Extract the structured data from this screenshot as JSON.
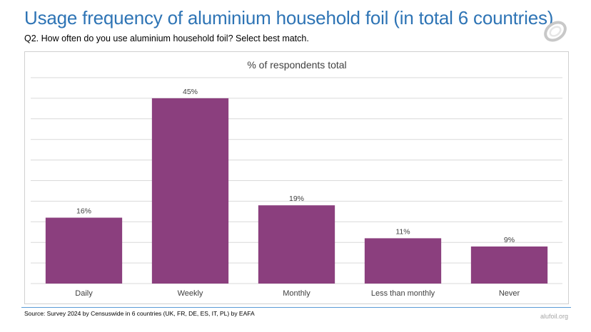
{
  "header": {
    "title": "Usage frequency of aluminium household foil (in total 6 countries)",
    "question": "Q2. How often do you use aluminium household foil? Select best match."
  },
  "footer": {
    "source": "Source: Survey 2024 by Censuswide in 6 countries (UK, FR, DE, ES, IT, PL) by EAFA",
    "site": "alufoil.org"
  },
  "logo": {
    "icon": "alufoil-swirl-logo"
  },
  "colors": {
    "bar": "#8b3f7e",
    "title": "#2e74b5",
    "grid": "#d9d9d9",
    "rule": "#5b9bd5"
  },
  "chart_data": {
    "type": "bar",
    "title": "% of respondents total",
    "categories": [
      "Daily",
      "Weekly",
      "Monthly",
      "Less than monthly",
      "Never"
    ],
    "values": [
      16,
      45,
      19,
      11,
      9
    ],
    "value_labels": [
      "16%",
      "45%",
      "19%",
      "11%",
      "9%"
    ],
    "ylim": [
      0,
      50
    ],
    "grid": true,
    "legend": "none"
  }
}
